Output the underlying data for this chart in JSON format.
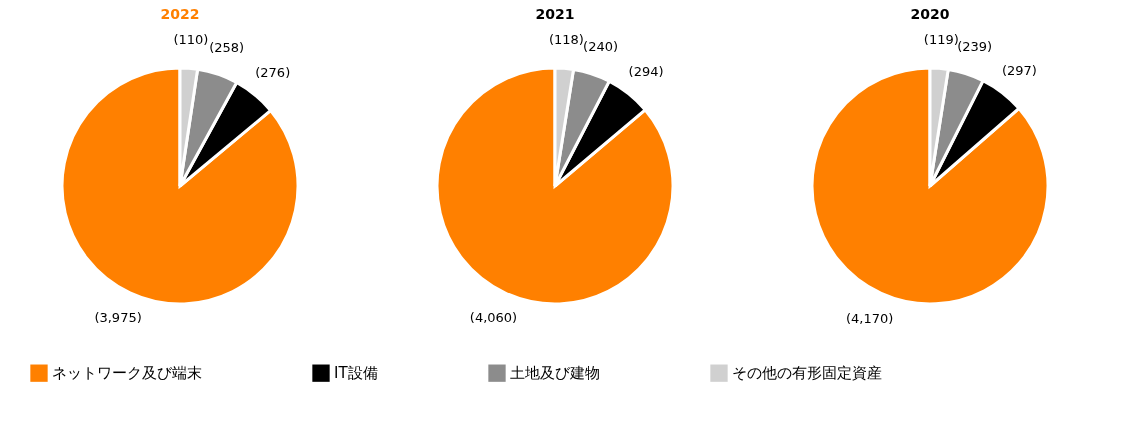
{
  "chart_data": [
    {
      "type": "pie",
      "title": "2022",
      "categories": [
        "ネットワーク及び端末",
        "IT設備",
        "土地及び建物",
        "その他の有形固定資産"
      ],
      "values": [
        3975,
        276,
        258,
        110
      ],
      "colors": [
        "#ff8000",
        "#000000",
        "#8c8c8c",
        "#d0d0d0"
      ],
      "value_labels": [
        "(3,975)",
        "(276)",
        "(258)",
        "(110)"
      ],
      "legend": "bottom"
    },
    {
      "type": "pie",
      "title": "2021",
      "categories": [
        null,
        null,
        null,
        null
      ],
      "values": [
        4060,
        294,
        240,
        118
      ],
      "colors": [
        "#ff8000",
        "#000000",
        "#8c8c8c",
        "#d0d0d0"
      ],
      "value_labels": [
        "(4,060)",
        "(294)",
        "(240)",
        "(118)"
      ]
    },
    {
      "type": "pie",
      "title": "2020",
      "categories": [
        null,
        null,
        null,
        null
      ],
      "values": [
        4170,
        297,
        239,
        119
      ],
      "colors": [
        "#ff8000",
        "#000000",
        "#8c8c8c",
        "#d0d0d0"
      ],
      "value_labels": [
        "(4,170)",
        "(297)",
        "(239)",
        "(119)"
      ]
    }
  ]
}
